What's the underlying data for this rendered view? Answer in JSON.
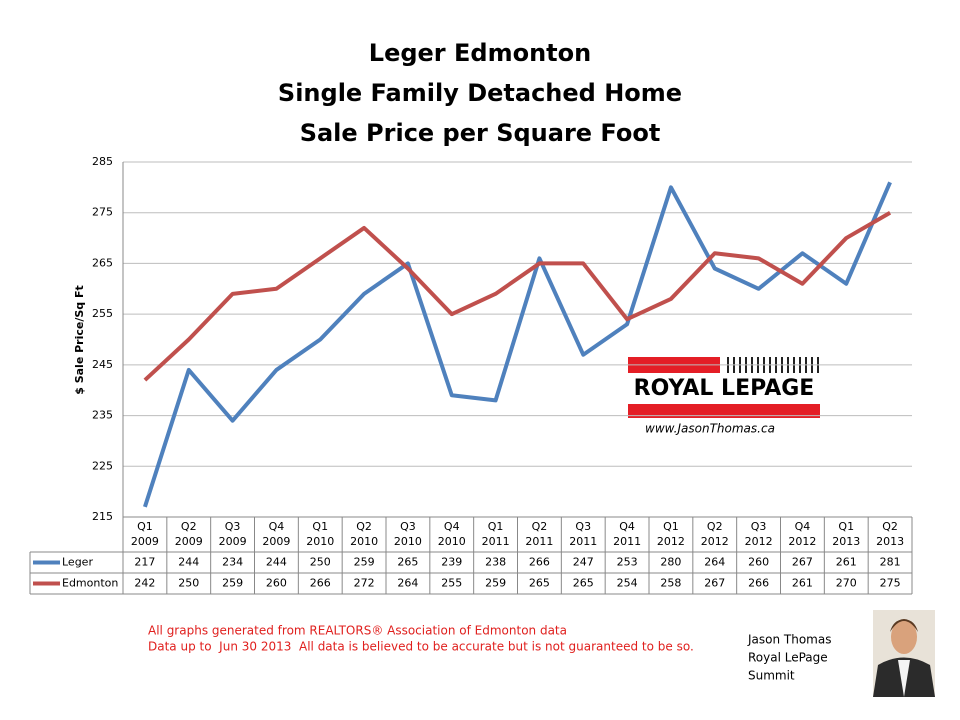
{
  "chart_data": {
    "type": "line",
    "title": [
      "Leger Edmonton",
      "Single Family Detached Home",
      "Sale Price per Square Foot"
    ],
    "y_label": "$ Sale Price/Sq Ft",
    "categories": [
      [
        "Q1",
        "2009"
      ],
      [
        "Q2",
        "2009"
      ],
      [
        "Q3",
        "2009"
      ],
      [
        "Q4",
        "2009"
      ],
      [
        "Q1",
        "2010"
      ],
      [
        "Q2",
        "2010"
      ],
      [
        "Q3",
        "2010"
      ],
      [
        "Q4",
        "2010"
      ],
      [
        "Q1",
        "2011"
      ],
      [
        "Q2",
        "2011"
      ],
      [
        "Q3",
        "2011"
      ],
      [
        "Q4",
        "2011"
      ],
      [
        "Q1",
        "2012"
      ],
      [
        "Q2",
        "2012"
      ],
      [
        "Q3",
        "2012"
      ],
      [
        "Q4",
        "2012"
      ],
      [
        "Q1",
        "2013"
      ],
      [
        "Q2",
        "2013"
      ]
    ],
    "series": [
      {
        "name": "Leger",
        "color": "#4f81bd",
        "values": [
          217,
          244,
          234,
          244,
          250,
          259,
          265,
          239,
          238,
          266,
          247,
          253,
          280,
          264,
          260,
          267,
          261,
          281
        ]
      },
      {
        "name": "Edmonton",
        "color": "#c0504d",
        "values": [
          242,
          250,
          259,
          260,
          266,
          272,
          264,
          255,
          259,
          265,
          265,
          254,
          258,
          267,
          266,
          261,
          270,
          275
        ]
      }
    ],
    "ylim": [
      215,
      285
    ],
    "yticks": [
      215,
      225,
      235,
      245,
      255,
      265,
      275,
      285
    ],
    "grid": true
  },
  "logo": {
    "name": "ROYAL LEPAGE",
    "url": "www.JasonThomas.ca"
  },
  "notes": [
    "All graphs generated from REALTORS® Association of Edmonton data",
    "Data up to  Jun 30 2013  All data is believed to be accurate but is not guaranteed to be so."
  ],
  "agent": [
    "Jason Thomas",
    "Royal LePage",
    "Summit"
  ]
}
